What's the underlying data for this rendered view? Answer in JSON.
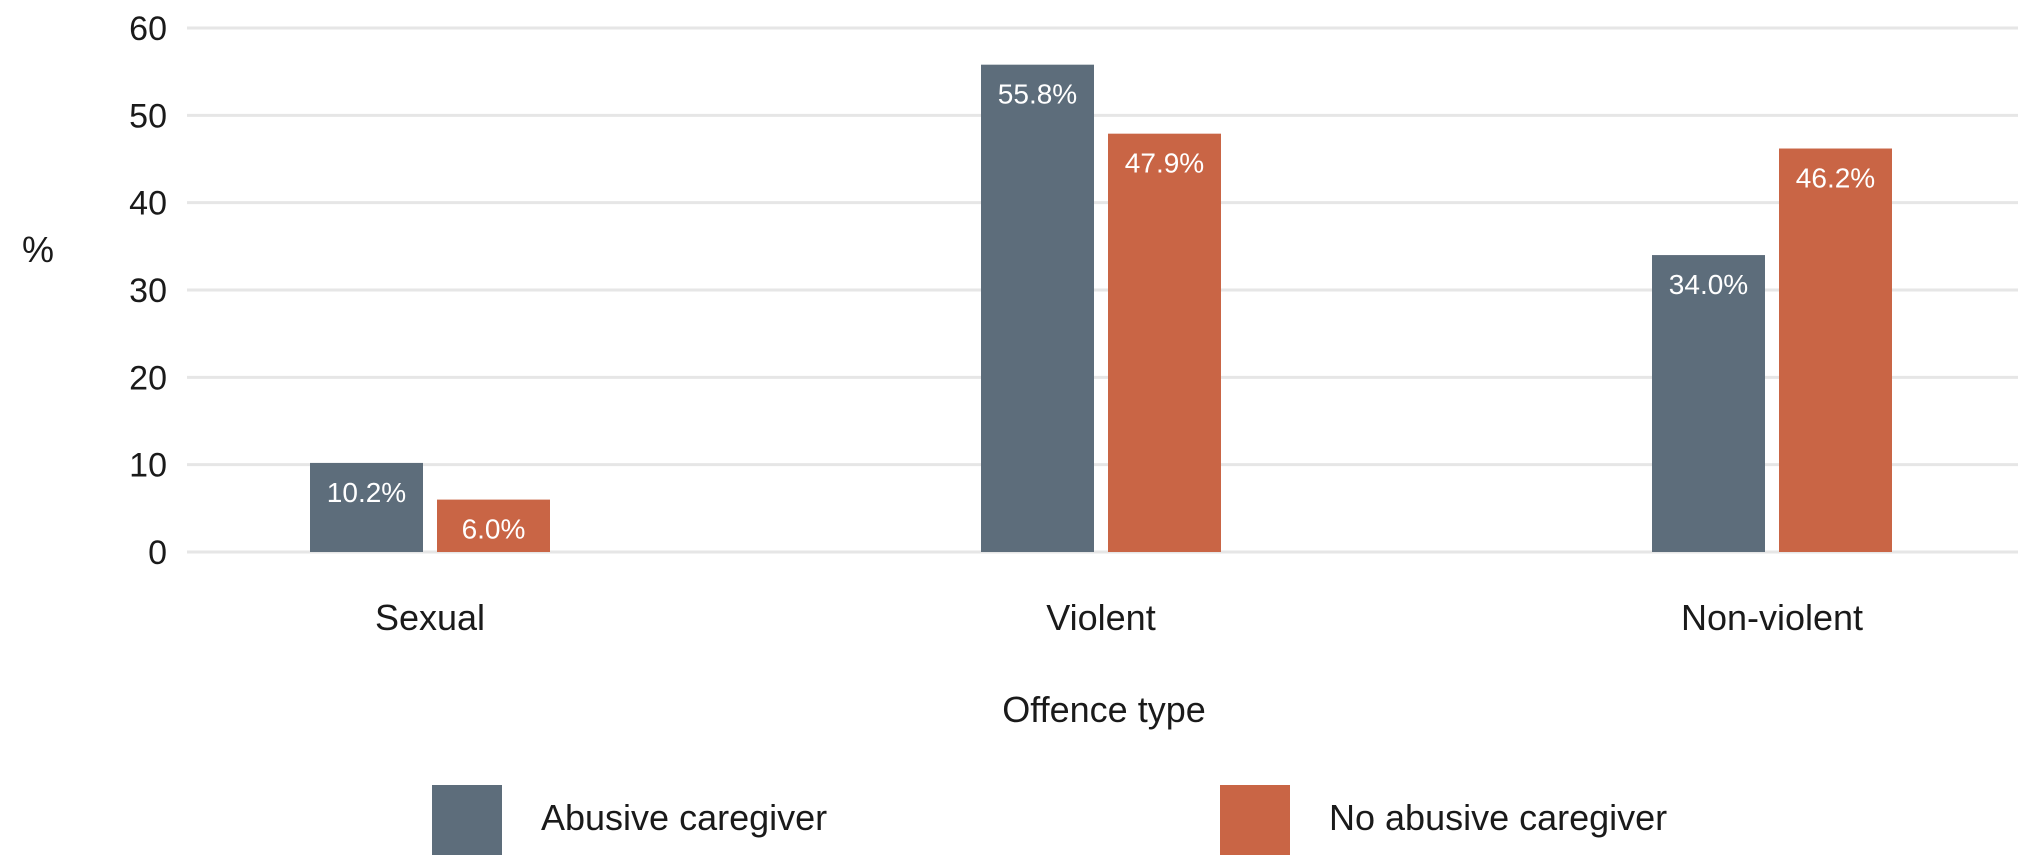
{
  "chart_data": {
    "type": "bar",
    "title": "",
    "xlabel": "Offence type",
    "ylabel": "%",
    "ylim": [
      0,
      60
    ],
    "yticks": [
      0,
      10,
      20,
      30,
      40,
      50,
      60
    ],
    "grid": true,
    "legend_position": "bottom",
    "categories": [
      "Sexual",
      "Violent",
      "Non-violent"
    ],
    "series": [
      {
        "name": "Abusive caregiver",
        "color": "#5d6d7b",
        "values": [
          10.2,
          55.8,
          34.0
        ],
        "labels": [
          "10.2%",
          "55.8%",
          "34.0%"
        ]
      },
      {
        "name": "No abusive caregiver",
        "color": "#c96545",
        "values": [
          6.0,
          47.9,
          46.2
        ],
        "labels": [
          "6.0%",
          "47.9%",
          "46.2%"
        ]
      }
    ]
  }
}
